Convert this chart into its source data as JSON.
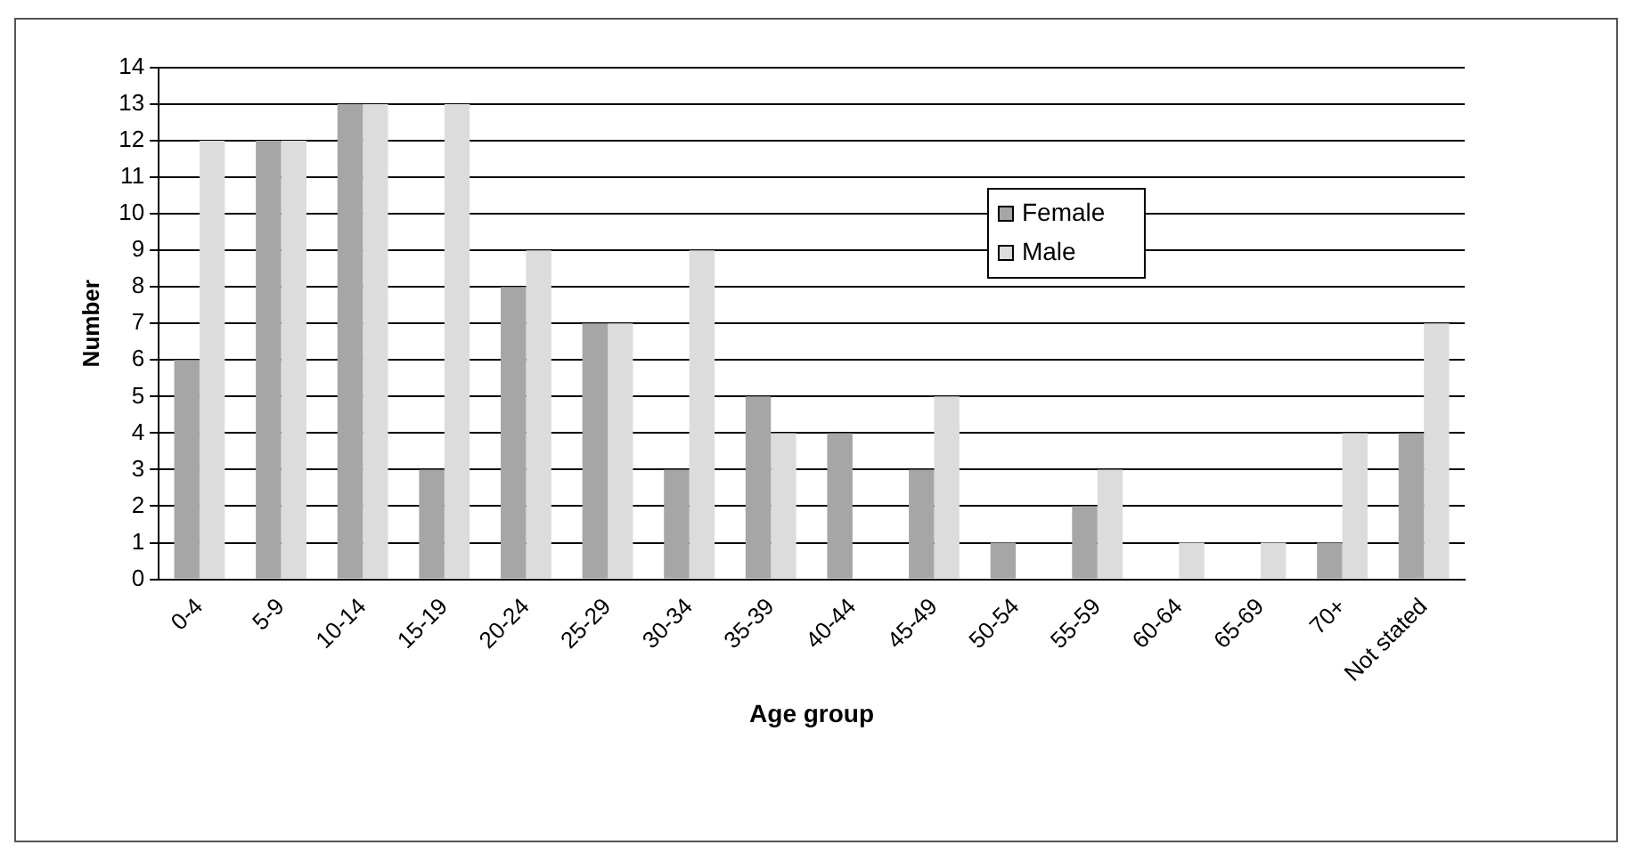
{
  "chart_data": {
    "type": "bar",
    "xlabel": "Age group",
    "ylabel": "Number",
    "categories": [
      "0-4",
      "5-9",
      "10-14",
      "15-19",
      "20-24",
      "25-29",
      "30-34",
      "35-39",
      "40-44",
      "45-49",
      "50-54",
      "55-59",
      "60-64",
      "65-69",
      "70+",
      "Not stated"
    ],
    "series": [
      {
        "name": "Female",
        "color": "#a6a6a6",
        "values": [
          6,
          12,
          13,
          3,
          8,
          7,
          3,
          5,
          4,
          3,
          1,
          2,
          0,
          0,
          1,
          4
        ]
      },
      {
        "name": "Male",
        "color": "#dcdcdc",
        "values": [
          12,
          12,
          13,
          13,
          9,
          7,
          9,
          4,
          0,
          5,
          0,
          3,
          1,
          1,
          4,
          7
        ]
      }
    ],
    "ylim": [
      0,
      14
    ],
    "yticks": [
      0,
      1,
      2,
      3,
      4,
      5,
      6,
      7,
      8,
      9,
      10,
      11,
      12,
      13,
      14
    ],
    "grid": "y",
    "legend": "top right"
  }
}
